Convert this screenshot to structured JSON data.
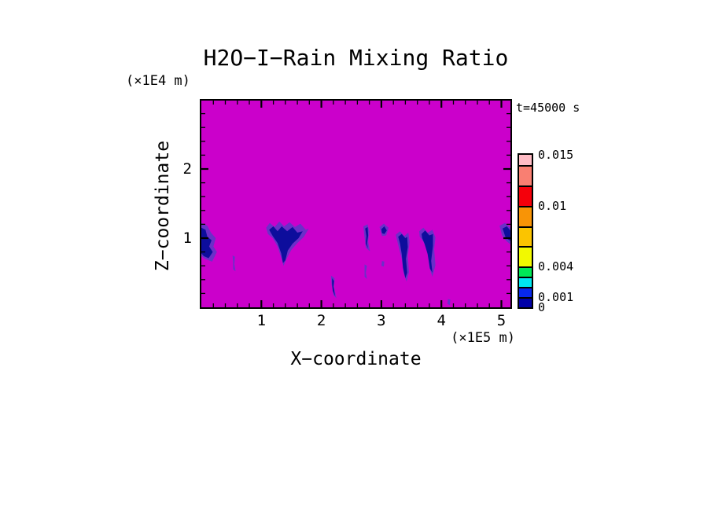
{
  "chart_data": {
    "type": "heatmap",
    "title": "H2O−I−Rain Mixing Ratio",
    "time": "t=45000 s",
    "xlabel": "X−coordinate",
    "x_unit": "(×1E5 m)",
    "zlabel": "Z−coordinate",
    "z_unit": "(×1E4 m)",
    "x_range": [
      0,
      5.15
    ],
    "z_range": [
      0,
      2.99
    ],
    "x_major_ticks": [
      1,
      2,
      3,
      4,
      5
    ],
    "z_major_ticks": [
      1,
      2
    ],
    "minor_tick_step": 0.2,
    "grid": false,
    "legend_position": "right",
    "zero_color": "#CB00CB",
    "feature_core_color": "#0D0D9C",
    "feature_fringe_color": "#6B2FC8",
    "colorbar": {
      "levels": [
        0,
        0.001,
        0.002,
        0.003,
        0.004,
        0.006,
        0.008,
        0.01,
        0.012,
        0.014,
        0.015
      ],
      "colors": [
        "#0000A8",
        "#0728EE",
        "#00E8F0",
        "#00E957",
        "#F2F900",
        "#FBC400",
        "#F89406",
        "#F5000B",
        "#F97F72",
        "#FFBCC5"
      ],
      "labeled_values": [
        0,
        0.001,
        0.004,
        0.01,
        0.015
      ],
      "labels": [
        "0",
        "0.001",
        "0.004",
        "0.01",
        "0.015"
      ]
    },
    "features": [
      {
        "name": "rain-shaft-left-edge-fringe",
        "layer": "fringe",
        "points": [
          [
            0,
            1.22
          ],
          [
            0.1,
            1.18
          ],
          [
            0.16,
            1.08
          ],
          [
            0.24,
            1.0
          ],
          [
            0.2,
            0.88
          ],
          [
            0.26,
            0.8
          ],
          [
            0.18,
            0.66
          ],
          [
            0.06,
            0.7
          ],
          [
            0,
            0.74
          ]
        ]
      },
      {
        "name": "rain-shaft-left-edge",
        "layer": "core",
        "points": [
          [
            0,
            1.15
          ],
          [
            0.07,
            1.12
          ],
          [
            0.1,
            1.02
          ],
          [
            0.17,
            0.97
          ],
          [
            0.13,
            0.88
          ],
          [
            0.19,
            0.8
          ],
          [
            0.12,
            0.71
          ],
          [
            0.04,
            0.74
          ],
          [
            0,
            0.78
          ]
        ]
      },
      {
        "name": "rain-shaft-v-fringe",
        "layer": "fringe",
        "points": [
          [
            1.08,
            1.15
          ],
          [
            1.14,
            1.22
          ],
          [
            1.22,
            1.16
          ],
          [
            1.3,
            1.24
          ],
          [
            1.38,
            1.17
          ],
          [
            1.47,
            1.23
          ],
          [
            1.56,
            1.16
          ],
          [
            1.65,
            1.21
          ],
          [
            1.74,
            1.12
          ],
          [
            1.79,
            1.14
          ],
          [
            1.71,
            1.02
          ],
          [
            1.6,
            0.93
          ],
          [
            1.5,
            0.83
          ],
          [
            1.42,
            0.7
          ],
          [
            1.37,
            0.6
          ],
          [
            1.33,
            0.72
          ],
          [
            1.27,
            0.88
          ],
          [
            1.19,
            1.0
          ],
          [
            1.11,
            1.06
          ]
        ]
      },
      {
        "name": "rain-shaft-v",
        "layer": "core",
        "points": [
          [
            1.13,
            1.12
          ],
          [
            1.2,
            1.17
          ],
          [
            1.27,
            1.1
          ],
          [
            1.34,
            1.17
          ],
          [
            1.43,
            1.1
          ],
          [
            1.52,
            1.16
          ],
          [
            1.6,
            1.08
          ],
          [
            1.69,
            1.1
          ],
          [
            1.62,
            1.0
          ],
          [
            1.52,
            0.92
          ],
          [
            1.44,
            0.82
          ],
          [
            1.4,
            0.68
          ],
          [
            1.36,
            0.64
          ],
          [
            1.33,
            0.78
          ],
          [
            1.27,
            0.93
          ],
          [
            1.19,
            1.03
          ]
        ]
      },
      {
        "name": "rain-wisps-x0.5-fringe",
        "layer": "fringe",
        "points": [
          [
            0.52,
            0.75
          ],
          [
            0.56,
            0.73
          ],
          [
            0.55,
            0.62
          ],
          [
            0.57,
            0.52
          ],
          [
            0.53,
            0.55
          ],
          [
            0.53,
            0.66
          ]
        ]
      },
      {
        "name": "rain-streak-x2.2-fringe",
        "layer": "fringe",
        "points": [
          [
            2.16,
            0.46
          ],
          [
            2.22,
            0.42
          ],
          [
            2.21,
            0.3
          ],
          [
            2.25,
            0.13
          ],
          [
            2.2,
            0.18
          ],
          [
            2.17,
            0.33
          ]
        ]
      },
      {
        "name": "rain-streak-x2.2",
        "layer": "core",
        "points": [
          [
            2.18,
            0.42
          ],
          [
            2.21,
            0.38
          ],
          [
            2.2,
            0.3
          ],
          [
            2.23,
            0.16
          ],
          [
            2.19,
            0.24
          ],
          [
            2.18,
            0.34
          ]
        ]
      },
      {
        "name": "rain-streak-x2.75-fringe",
        "layer": "fringe",
        "points": [
          [
            2.7,
            1.17
          ],
          [
            2.77,
            1.2
          ],
          [
            2.8,
            1.09
          ],
          [
            2.78,
            0.95
          ],
          [
            2.81,
            0.81
          ],
          [
            2.74,
            0.86
          ],
          [
            2.72,
            1.01
          ]
        ]
      },
      {
        "name": "rain-streak-x2.75",
        "layer": "core",
        "points": [
          [
            2.73,
            1.14
          ],
          [
            2.77,
            1.16
          ],
          [
            2.78,
            1.04
          ],
          [
            2.76,
            0.92
          ],
          [
            2.78,
            0.85
          ],
          [
            2.74,
            0.92
          ],
          [
            2.75,
            1.03
          ]
        ]
      },
      {
        "name": "rain-wisps-x2.75-low-fringe",
        "layer": "fringe",
        "points": [
          [
            2.72,
            0.62
          ],
          [
            2.76,
            0.6
          ],
          [
            2.74,
            0.5
          ],
          [
            2.76,
            0.41
          ],
          [
            2.72,
            0.44
          ],
          [
            2.72,
            0.54
          ]
        ]
      },
      {
        "name": "rain-blob-x3.05-fringe",
        "layer": "fringe",
        "points": [
          [
            2.97,
            1.16
          ],
          [
            3.04,
            1.21
          ],
          [
            3.12,
            1.15
          ],
          [
            3.08,
            1.04
          ],
          [
            3.01,
            1.03
          ]
        ]
      },
      {
        "name": "rain-blob-x3.05",
        "layer": "core",
        "points": [
          [
            3.0,
            1.13
          ],
          [
            3.05,
            1.17
          ],
          [
            3.09,
            1.11
          ],
          [
            3.05,
            1.06
          ],
          [
            3.01,
            1.07
          ]
        ]
      },
      {
        "name": "rain-speck-x3.03-fringe",
        "layer": "fringe",
        "points": [
          [
            3.01,
            0.67
          ],
          [
            3.05,
            0.66
          ],
          [
            3.04,
            0.59
          ],
          [
            3.0,
            0.6
          ]
        ]
      },
      {
        "name": "rain-shaft-x3.4-fringe",
        "layer": "fringe",
        "points": [
          [
            3.24,
            1.05
          ],
          [
            3.31,
            1.1
          ],
          [
            3.38,
            1.03
          ],
          [
            3.45,
            1.08
          ],
          [
            3.47,
            0.94
          ],
          [
            3.44,
            0.74
          ],
          [
            3.46,
            0.51
          ],
          [
            3.42,
            0.37
          ],
          [
            3.37,
            0.5
          ],
          [
            3.34,
            0.7
          ],
          [
            3.28,
            0.9
          ]
        ]
      },
      {
        "name": "rain-shaft-x3.4",
        "layer": "core",
        "points": [
          [
            3.28,
            1.02
          ],
          [
            3.34,
            1.06
          ],
          [
            3.4,
            1.0
          ],
          [
            3.43,
            1.02
          ],
          [
            3.44,
            0.87
          ],
          [
            3.41,
            0.7
          ],
          [
            3.43,
            0.5
          ],
          [
            3.4,
            0.42
          ],
          [
            3.36,
            0.57
          ],
          [
            3.34,
            0.77
          ],
          [
            3.31,
            0.92
          ]
        ]
      },
      {
        "name": "rain-shaft-x3.8-fringe",
        "layer": "fringe",
        "points": [
          [
            3.63,
            1.1
          ],
          [
            3.7,
            1.15
          ],
          [
            3.77,
            1.08
          ],
          [
            3.85,
            1.12
          ],
          [
            3.9,
            1.01
          ],
          [
            3.88,
            0.84
          ],
          [
            3.9,
            0.61
          ],
          [
            3.85,
            0.44
          ],
          [
            3.8,
            0.58
          ],
          [
            3.77,
            0.8
          ],
          [
            3.7,
            0.95
          ],
          [
            3.64,
            1.02
          ]
        ]
      },
      {
        "name": "rain-shaft-x3.8",
        "layer": "core",
        "points": [
          [
            3.67,
            1.06
          ],
          [
            3.73,
            1.11
          ],
          [
            3.8,
            1.04
          ],
          [
            3.86,
            1.06
          ],
          [
            3.86,
            0.89
          ],
          [
            3.83,
            0.67
          ],
          [
            3.85,
            0.5
          ],
          [
            3.81,
            0.56
          ],
          [
            3.77,
            0.77
          ],
          [
            3.72,
            0.92
          ],
          [
            3.68,
            1.0
          ]
        ]
      },
      {
        "name": "rain-shaft-right-edge-fringe",
        "layer": "fringe",
        "points": [
          [
            4.97,
            1.18
          ],
          [
            5.06,
            1.22
          ],
          [
            5.15,
            1.15
          ],
          [
            5.15,
            0.91
          ],
          [
            5.08,
            0.96
          ],
          [
            5.01,
            1.04
          ]
        ]
      },
      {
        "name": "rain-shaft-right-edge",
        "layer": "core",
        "points": [
          [
            5.02,
            1.14
          ],
          [
            5.09,
            1.17
          ],
          [
            5.15,
            1.11
          ],
          [
            5.15,
            0.96
          ],
          [
            5.07,
            1.01
          ]
        ]
      },
      {
        "name": "rain-speck-x4.13-fringe",
        "layer": "fringe",
        "points": [
          [
            4.11,
            0.12
          ],
          [
            4.15,
            0.11
          ],
          [
            4.14,
            0.03
          ],
          [
            4.1,
            0.05
          ]
        ]
      }
    ]
  }
}
